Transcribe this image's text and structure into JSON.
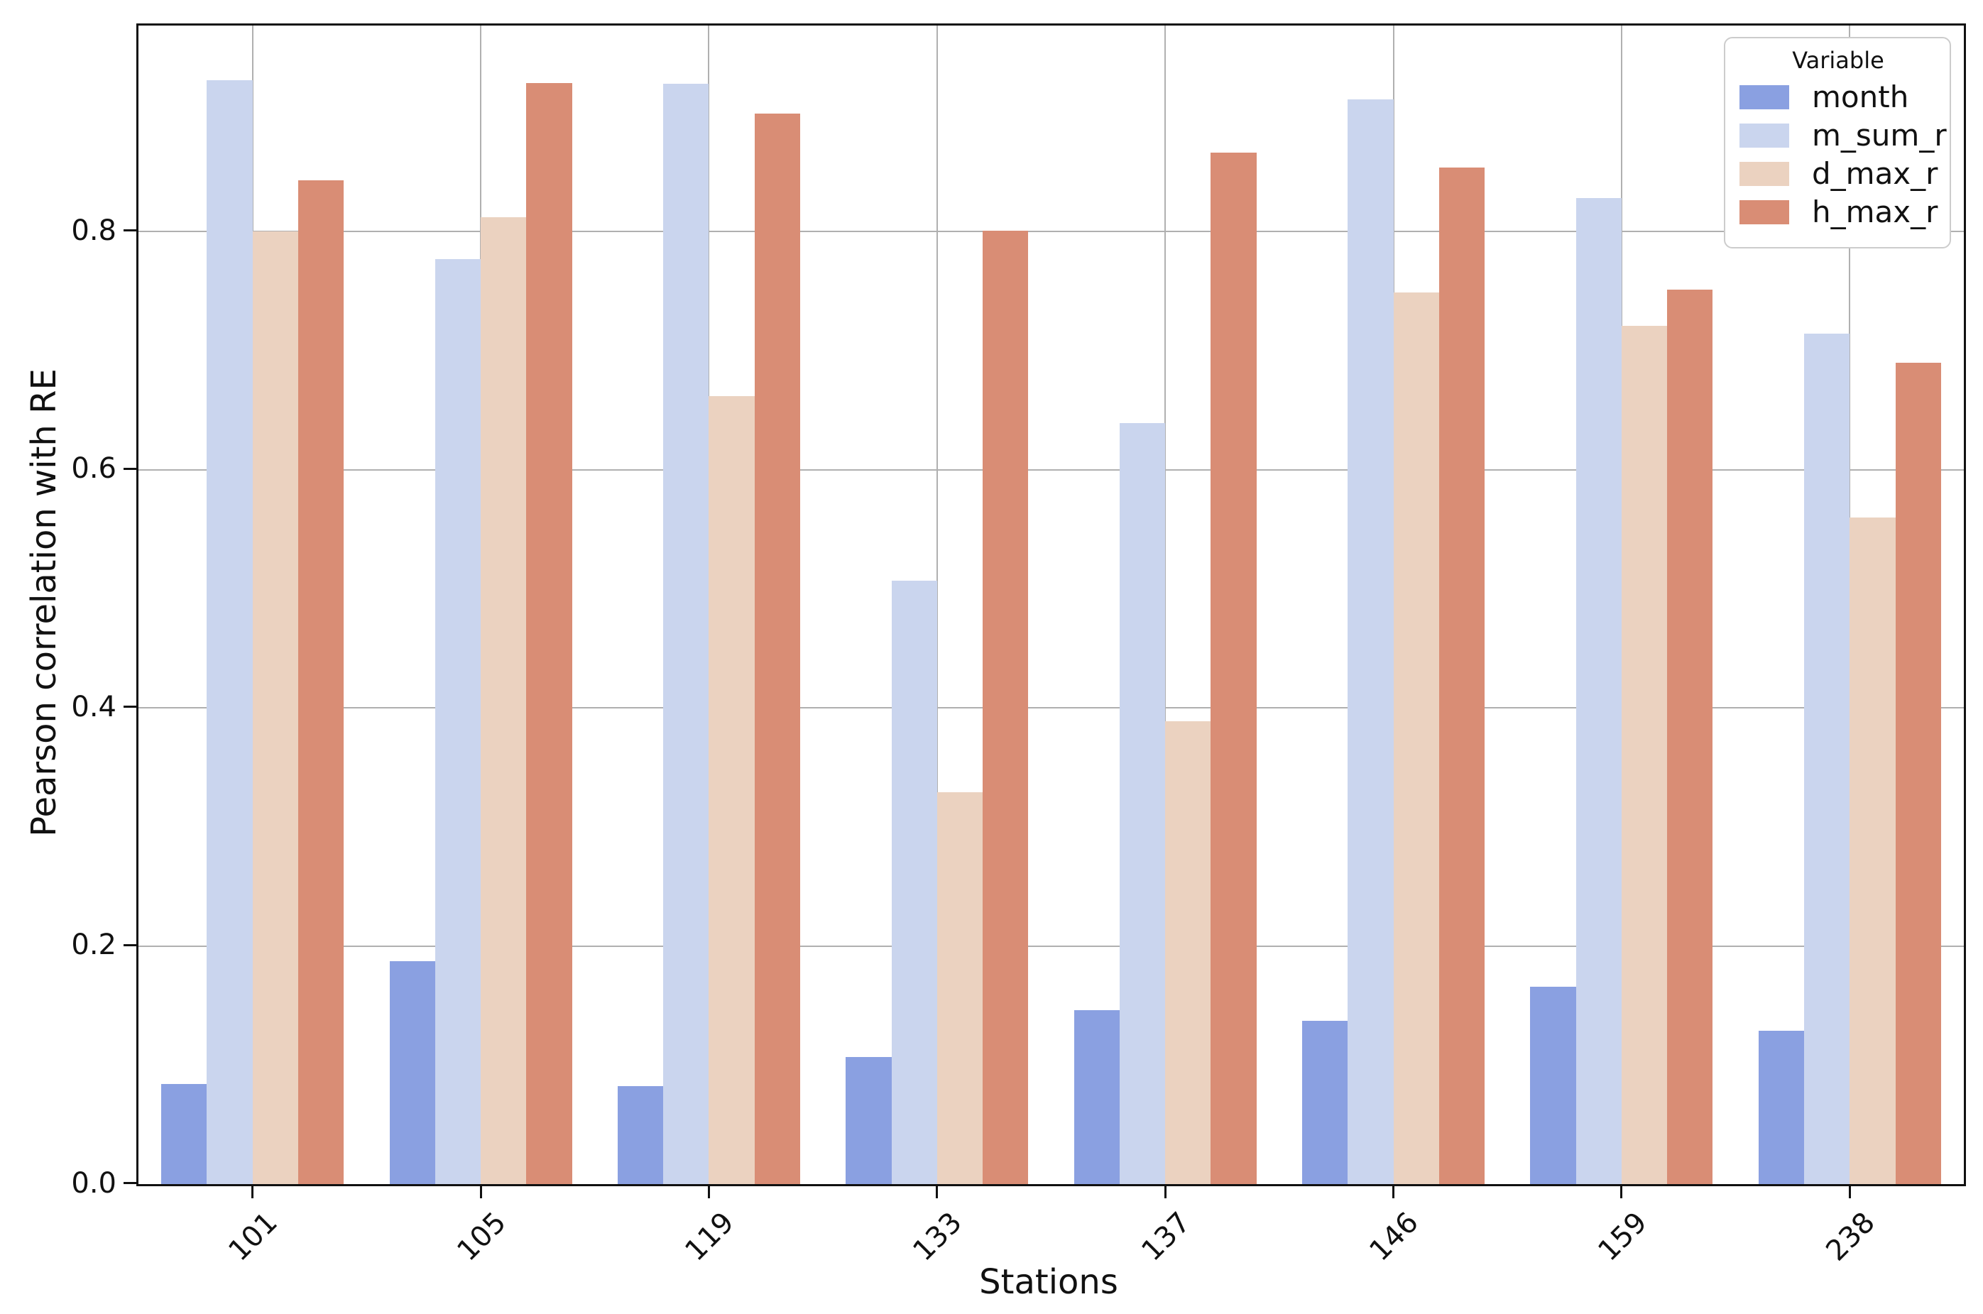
{
  "chart_data": {
    "type": "bar",
    "title": "",
    "xlabel": "Stations",
    "ylabel": "Pearson correlation with RE",
    "categories": [
      "101",
      "105",
      "119",
      "133",
      "137",
      "146",
      "159",
      "238"
    ],
    "series": [
      {
        "name": "month",
        "color": "#8AA0E1",
        "values": [
          0.084,
          0.187,
          0.082,
          0.107,
          0.146,
          0.137,
          0.166,
          0.129
        ]
      },
      {
        "name": "m_sum_r",
        "color": "#CAD5EE",
        "values": [
          0.927,
          0.777,
          0.924,
          0.507,
          0.639,
          0.911,
          0.828,
          0.714
        ]
      },
      {
        "name": "d_max_r",
        "color": "#EBD2C0",
        "values": [
          0.8,
          0.812,
          0.662,
          0.329,
          0.389,
          0.749,
          0.721,
          0.56
        ]
      },
      {
        "name": "h_max_r",
        "color": "#D98D75",
        "values": [
          0.843,
          0.925,
          0.899,
          0.801,
          0.866,
          0.854,
          0.751,
          0.69
        ]
      }
    ],
    "legend": {
      "title": "Variable",
      "position": "upper right"
    },
    "yticks": [
      "0.0",
      "0.2",
      "0.4",
      "0.6",
      "0.8"
    ],
    "ytick_values": [
      0.0,
      0.2,
      0.4,
      0.6,
      0.8
    ],
    "ylim": [
      0,
      0.973
    ],
    "grid": true,
    "grid_color": "#b0b0b0"
  }
}
